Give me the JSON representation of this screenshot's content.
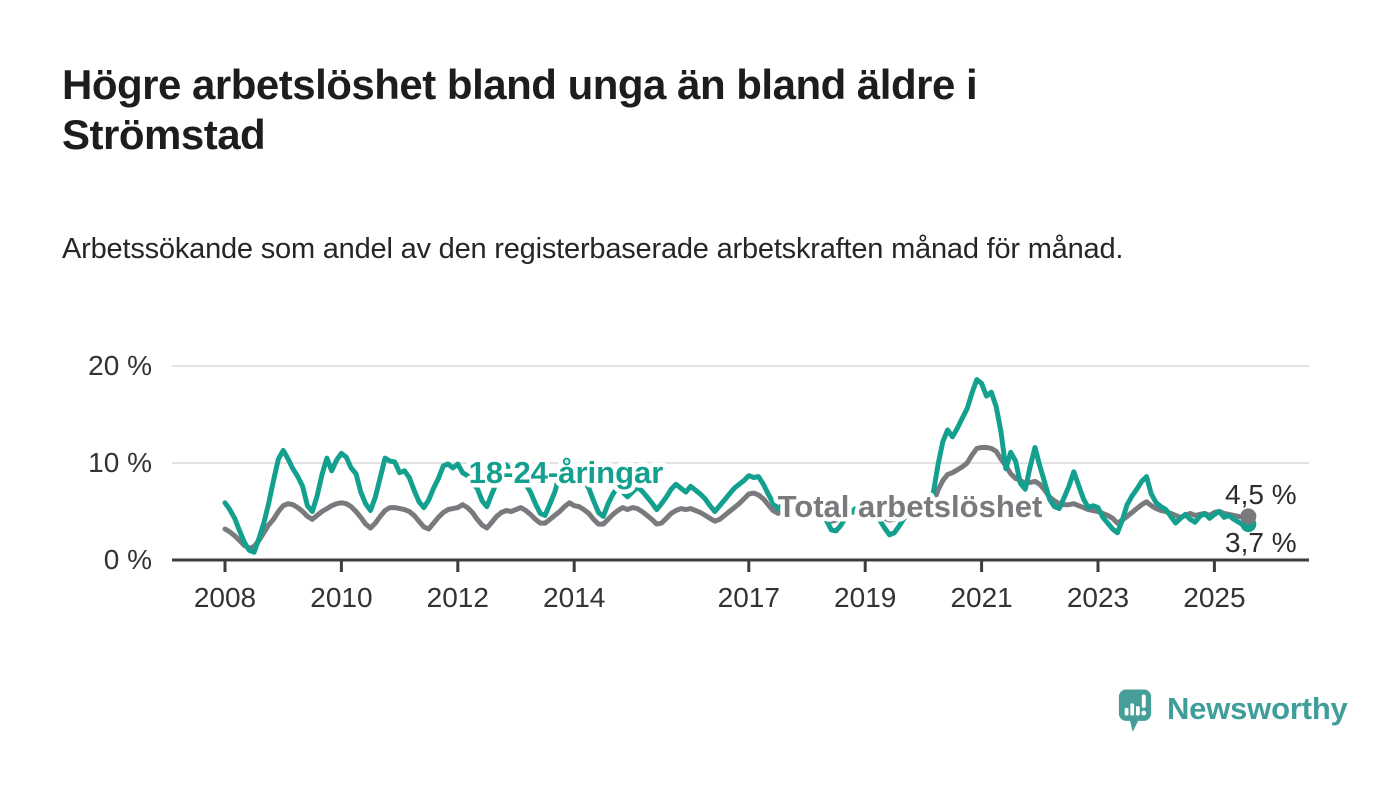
{
  "header": {
    "title": "Högre arbetslöshet bland unga än bland äldre i Strömstad",
    "subtitle": "Arbetssökande som andel av den registerbaserade arbetskraften månad för månad."
  },
  "branding": {
    "logo_text": "Newsworthy",
    "logo_icon": "bar-chart-speech-bubble-icon"
  },
  "colors": {
    "young_series": "#14a08f",
    "total_series": "#797a7d",
    "axis": "#3d3d3f",
    "grid": "#d9d9d9",
    "tick_text": "#333333",
    "value_label_text": "#2d2d2d",
    "title_text": "#1d1d20",
    "brand_teal": "#3f9e99",
    "background": "#ffffff"
  },
  "chart_data": {
    "type": "line",
    "unit": "%",
    "frequency": "monthly",
    "x_start": "2008-01",
    "x_end": "2025-08",
    "ylim": [
      0,
      20
    ],
    "grid": "horizontal-only",
    "legend": "inline-labels",
    "y_ticks": [
      {
        "label": "20 %",
        "value": 20
      },
      {
        "label": "10 %",
        "value": 10
      },
      {
        "label": "0 %",
        "value": 0
      }
    ],
    "x_ticks": [
      {
        "label": "2008",
        "year": 2008
      },
      {
        "label": "2010",
        "year": 2010
      },
      {
        "label": "2012",
        "year": 2012
      },
      {
        "label": "2014",
        "year": 2014
      },
      {
        "label": "2017",
        "year": 2017
      },
      {
        "label": "2019",
        "year": 2019
      },
      {
        "label": "2021",
        "year": 2021
      },
      {
        "label": "2023",
        "year": 2023
      },
      {
        "label": "2025",
        "year": 2025
      }
    ],
    "series": [
      {
        "name": "Total arbetslöshet",
        "color_key": "total_series",
        "end_label": "4,5 %",
        "end_value": 4.5,
        "values": [
          3.2,
          2.9,
          2.5,
          2.0,
          1.5,
          1.2,
          1.4,
          2.0,
          2.8,
          3.6,
          4.2,
          5.0,
          5.6,
          5.8,
          5.7,
          5.4,
          5.0,
          4.5,
          4.2,
          4.6,
          5.0,
          5.3,
          5.6,
          5.8,
          5.9,
          5.8,
          5.5,
          5.0,
          4.4,
          3.7,
          3.3,
          3.8,
          4.5,
          5.1,
          5.4,
          5.4,
          5.3,
          5.2,
          5.0,
          4.6,
          4.0,
          3.4,
          3.2,
          3.8,
          4.4,
          4.9,
          5.2,
          5.3,
          5.4,
          5.7,
          5.4,
          4.9,
          4.2,
          3.6,
          3.3,
          3.9,
          4.5,
          4.9,
          5.1,
          5.0,
          5.2,
          5.4,
          5.1,
          4.7,
          4.2,
          3.8,
          3.8,
          4.2,
          4.6,
          5.0,
          5.5,
          5.9,
          5.6,
          5.5,
          5.2,
          4.8,
          4.2,
          3.7,
          3.7,
          4.2,
          4.7,
          5.1,
          5.4,
          5.2,
          5.4,
          5.3,
          5.0,
          4.6,
          4.2,
          3.7,
          3.8,
          4.3,
          4.8,
          5.1,
          5.3,
          5.2,
          5.3,
          5.1,
          4.9,
          4.6,
          4.3,
          4.0,
          4.2,
          4.6,
          5.0,
          5.4,
          5.8,
          6.3,
          6.8,
          6.9,
          6.7,
          6.3,
          5.7,
          5.1,
          4.8,
          5.0,
          5.2,
          5.1,
          5.0,
          4.9,
          5.0,
          5.2,
          5.0,
          4.7,
          4.3,
          4.0,
          4.1,
          4.4,
          4.7,
          4.9,
          5.0,
          5.1,
          5.2,
          5.0,
          4.8,
          4.6,
          4.3,
          4.1,
          4.2,
          4.5,
          4.7,
          4.8,
          4.7,
          4.8,
          4.9,
          5.0,
          5.8,
          7.2,
          8.2,
          8.8,
          9.0,
          9.3,
          9.6,
          10.0,
          10.8,
          11.5,
          11.6,
          11.6,
          11.5,
          11.2,
          10.4,
          9.7,
          8.9,
          8.4,
          8.2,
          7.9,
          8.0,
          8.1,
          7.8,
          7.2,
          6.5,
          6.1,
          5.8,
          5.7,
          5.7,
          5.8,
          5.6,
          5.4,
          5.2,
          5.1,
          5.0,
          4.8,
          4.6,
          4.3,
          3.8,
          4.1,
          4.5,
          4.9,
          5.3,
          5.7,
          6.0,
          5.6,
          5.3,
          5.1,
          5.0,
          4.8,
          4.6,
          4.4,
          4.6,
          4.8,
          4.6,
          4.7,
          4.8,
          4.6,
          4.9,
          5.0,
          4.8,
          4.7,
          4.6,
          4.5,
          4.4,
          4.5
        ]
      },
      {
        "name": "18-24-åringar",
        "color_key": "young_series",
        "end_label": "3,7 %",
        "end_value": 3.7,
        "values": [
          5.9,
          5.2,
          4.3,
          3.0,
          1.8,
          1.0,
          0.8,
          2.2,
          3.8,
          5.8,
          8.2,
          10.4,
          11.3,
          10.4,
          9.4,
          8.6,
          7.6,
          5.6,
          5.0,
          6.6,
          8.8,
          10.5,
          9.2,
          10.3,
          11.0,
          10.6,
          9.5,
          8.9,
          7.0,
          5.8,
          5.1,
          6.5,
          8.5,
          10.5,
          10.2,
          10.1,
          9.0,
          9.2,
          8.5,
          7.2,
          6.0,
          5.4,
          6.2,
          7.4,
          8.4,
          9.7,
          9.9,
          9.5,
          9.9,
          9.0,
          8.7,
          7.9,
          7.4,
          6.1,
          5.5,
          6.8,
          8.0,
          9.3,
          9.8,
          9.2,
          8.8,
          8.3,
          7.8,
          7.0,
          5.8,
          4.8,
          4.6,
          5.8,
          7.0,
          8.8,
          10.1,
          10.4,
          9.6,
          9.0,
          8.4,
          7.4,
          6.1,
          4.9,
          4.5,
          5.8,
          6.8,
          7.5,
          7.0,
          6.5,
          7.0,
          7.5,
          7.1,
          6.5,
          5.9,
          5.2,
          5.8,
          6.5,
          7.3,
          7.8,
          7.4,
          7.0,
          7.6,
          7.2,
          6.8,
          6.3,
          5.6,
          5.0,
          5.6,
          6.2,
          6.8,
          7.4,
          7.8,
          8.2,
          8.7,
          8.5,
          8.6,
          7.8,
          6.8,
          5.9,
          5.3,
          5.7,
          6.1,
          5.9,
          5.6,
          5.3,
          5.5,
          5.9,
          5.6,
          4.9,
          4.1,
          3.1,
          3.0,
          3.6,
          4.4,
          4.9,
          5.3,
          5.6,
          5.7,
          5.4,
          4.9,
          4.1,
          3.3,
          2.6,
          2.8,
          3.5,
          4.3,
          4.7,
          4.5,
          4.7,
          4.6,
          4.9,
          6.8,
          9.8,
          12.2,
          13.4,
          12.7,
          13.6,
          14.6,
          15.6,
          17.2,
          18.6,
          18.2,
          16.9,
          17.3,
          15.8,
          13.2,
          9.4,
          11.1,
          10.2,
          7.9,
          7.3,
          9.6,
          11.6,
          9.7,
          8.0,
          6.3,
          5.5,
          5.3,
          6.4,
          7.6,
          9.1,
          7.7,
          6.3,
          5.4,
          5.6,
          5.4,
          4.4,
          3.8,
          3.2,
          2.8,
          4.1,
          5.7,
          6.6,
          7.3,
          8.1,
          8.6,
          6.8,
          5.9,
          5.5,
          5.2,
          4.5,
          3.8,
          4.3,
          4.7,
          4.2,
          3.9,
          4.5,
          4.8,
          4.3,
          4.7,
          5.0,
          4.4,
          4.6,
          4.2,
          3.9,
          3.6,
          3.7
        ]
      }
    ]
  }
}
